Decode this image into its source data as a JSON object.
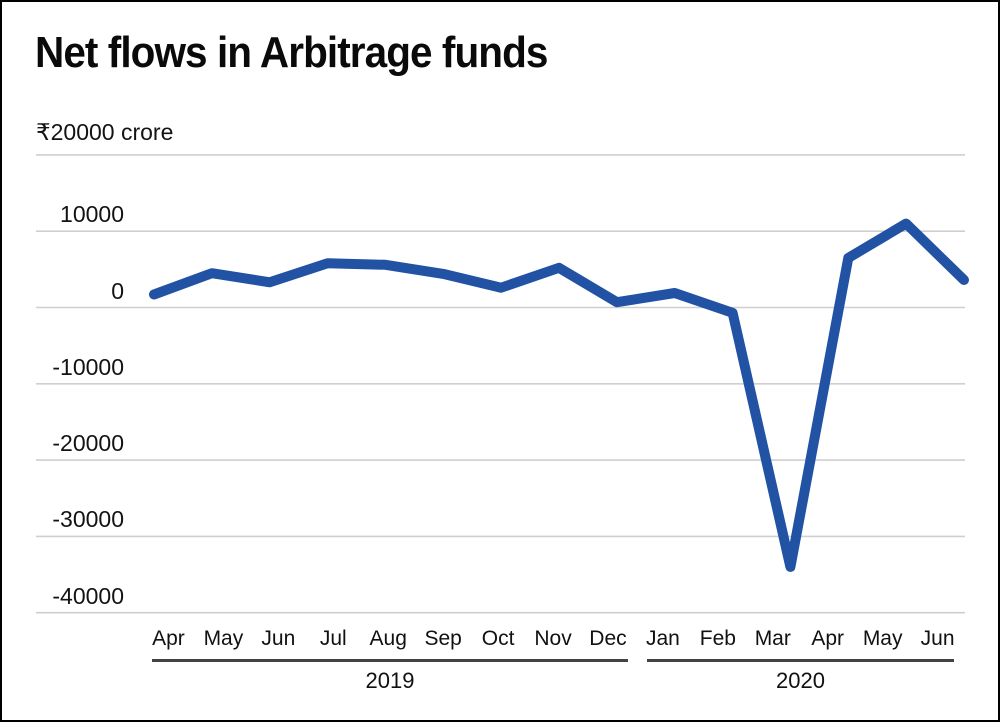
{
  "chart_data": {
    "type": "line",
    "title": "Net flows in Arbitrage funds",
    "ytick_top_label": "₹20000 crore",
    "unit": "₹ crore",
    "categories": [
      "Apr",
      "May",
      "Jun",
      "Jul",
      "Aug",
      "Sep",
      "Oct",
      "Nov",
      "Dec",
      "Jan",
      "Feb",
      "Mar",
      "Apr",
      "May",
      "Jun"
    ],
    "year_groups": [
      {
        "label": "2019",
        "start_index": 0,
        "month_count": 9
      },
      {
        "label": "2020",
        "start_index": 9,
        "month_count": 6
      }
    ],
    "series": [
      {
        "name": "Net flows in Arbitrage funds",
        "values": [
          1700,
          4500,
          3300,
          5800,
          5600,
          4400,
          2600,
          5200,
          700,
          1900,
          -700,
          -34000,
          6500,
          11000,
          3600
        ]
      }
    ],
    "yticks": [
      20000,
      10000,
      0,
      -10000,
      -20000,
      -30000,
      -40000
    ],
    "ytick_labels": [
      "10000",
      "0",
      "-10000",
      "-20000",
      "-30000",
      "-40000"
    ],
    "ylim": [
      -45000,
      21000
    ],
    "grid": true,
    "legend": "none",
    "line_color": "#2152a3",
    "gridline_color": "#cfcfcf",
    "separator_color": "#434343",
    "text_color": "#111111"
  }
}
